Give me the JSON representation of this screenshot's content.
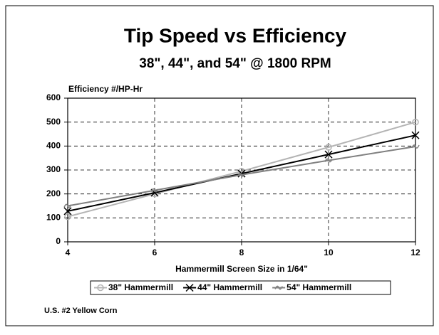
{
  "chart_data": {
    "type": "line",
    "title": "Tip Speed vs Efficiency",
    "subtitle": "38\", 44\", and 54\" @ 1800 RPM",
    "y_label": "Efficiency #/HP-Hr",
    "x_label": "Hammermill Screen Size in 1/64\"",
    "note": "U.S. #2 Yellow Corn",
    "x": [
      4,
      6,
      8,
      10,
      12
    ],
    "series": [
      {
        "name": "38\" Hammermill",
        "color": "#b4b4b4",
        "marker": "circle",
        "values": [
          105,
          200,
          295,
          395,
          500
        ]
      },
      {
        "name": "44\" Hammermill",
        "color": "#000000",
        "marker": "x",
        "values": [
          128,
          205,
          285,
          365,
          445
        ]
      },
      {
        "name": "54\" Hammermill",
        "color": "#808080",
        "marker": "tilde",
        "values": [
          150,
          215,
          280,
          340,
          398
        ]
      }
    ],
    "xlim": [
      4,
      12
    ],
    "xticks": [
      4,
      6,
      8,
      10,
      12
    ],
    "ylim": [
      0,
      600
    ],
    "yticks": [
      0,
      100,
      200,
      300,
      400,
      500,
      600
    ],
    "grid": true,
    "legend": "bottom"
  }
}
